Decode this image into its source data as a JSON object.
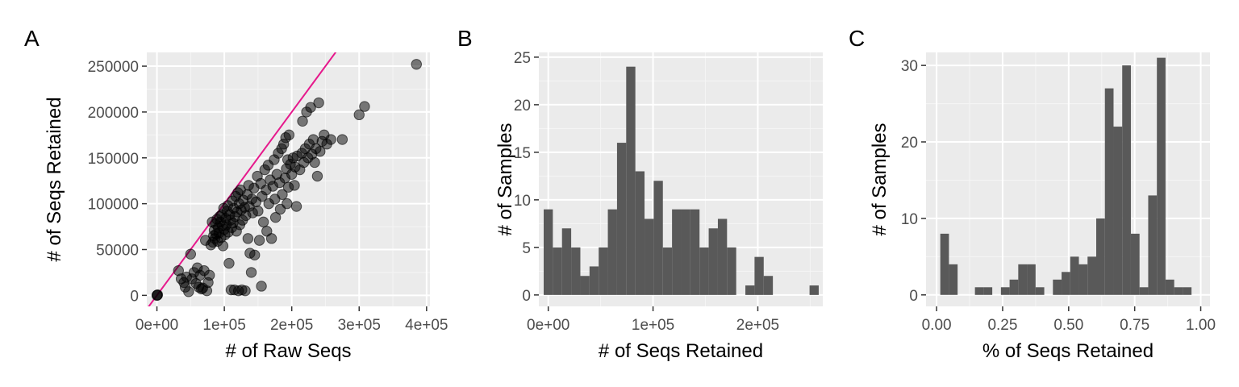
{
  "colors": {
    "panel_background": "#ebebeb",
    "grid_major": "#ffffff",
    "grid_minor": "#f5f5f5",
    "points": "#000000",
    "bars": "#595959",
    "reference_line": "#e6198c",
    "tick_text": "#4d4d4d"
  },
  "chart_data": [
    {
      "panel_tag": "A",
      "type": "scatter",
      "xlabel": "# of Raw Seqs",
      "ylabel": "# of Seqs Retained",
      "xlim": [
        -15000,
        405000
      ],
      "ylim": [
        -12000,
        265000
      ],
      "x_ticks": [
        0,
        100000,
        200000,
        300000,
        400000
      ],
      "x_tick_labels": [
        "0e+00",
        "1e+05",
        "2e+05",
        "3e+05",
        "4e+05"
      ],
      "y_ticks": [
        0,
        50000,
        100000,
        150000,
        200000,
        250000
      ],
      "y_tick_labels": [
        "0",
        "50000",
        "100000",
        "150000",
        "200000",
        "250000"
      ],
      "reference_line": {
        "slope": 1,
        "intercept": 0
      },
      "point_opacity": 0.5,
      "points": [
        [
          0,
          0
        ],
        [
          500,
          300
        ],
        [
          1000,
          600
        ],
        [
          32000,
          27000
        ],
        [
          36000,
          18000
        ],
        [
          40000,
          14000
        ],
        [
          42000,
          9000
        ],
        [
          44000,
          20000
        ],
        [
          47000,
          4000
        ],
        [
          50000,
          45000
        ],
        [
          52000,
          18000
        ],
        [
          55000,
          25000
        ],
        [
          58000,
          13000
        ],
        [
          60000,
          30000
        ],
        [
          62000,
          9000
        ],
        [
          64000,
          22000
        ],
        [
          66000,
          7000
        ],
        [
          68000,
          8000
        ],
        [
          70000,
          27000
        ],
        [
          72000,
          60000
        ],
        [
          74000,
          5000
        ],
        [
          76000,
          14000
        ],
        [
          78000,
          22000
        ],
        [
          80000,
          55000
        ],
        [
          82000,
          80000
        ],
        [
          83000,
          58000
        ],
        [
          84000,
          65000
        ],
        [
          85000,
          71000
        ],
        [
          86000,
          62000
        ],
        [
          87000,
          78000
        ],
        [
          88000,
          67000
        ],
        [
          89000,
          83000
        ],
        [
          90000,
          59000
        ],
        [
          91000,
          74000
        ],
        [
          92000,
          68000
        ],
        [
          93000,
          86000
        ],
        [
          94000,
          80000
        ],
        [
          95000,
          63000
        ],
        [
          96000,
          88000
        ],
        [
          97000,
          76000
        ],
        [
          98000,
          54000
        ],
        [
          99000,
          95000
        ],
        [
          100000,
          72000
        ],
        [
          101000,
          66000
        ],
        [
          102000,
          84000
        ],
        [
          103000,
          77000
        ],
        [
          104000,
          92000
        ],
        [
          105000,
          98000
        ],
        [
          106000,
          69000
        ],
        [
          107000,
          35000
        ],
        [
          108000,
          88000
        ],
        [
          109000,
          82000
        ],
        [
          110000,
          6000
        ],
        [
          111000,
          74000
        ],
        [
          112000,
          103000
        ],
        [
          113000,
          79000
        ],
        [
          114000,
          95000
        ],
        [
          115000,
          6000
        ],
        [
          116000,
          86000
        ],
        [
          117000,
          108000
        ],
        [
          118000,
          70000
        ],
        [
          119000,
          91000
        ],
        [
          120000,
          112000
        ],
        [
          121000,
          5000
        ],
        [
          122000,
          100000
        ],
        [
          123000,
          77000
        ],
        [
          124000,
          115000
        ],
        [
          125000,
          93000
        ],
        [
          126000,
          6000
        ],
        [
          127000,
          82000
        ],
        [
          128000,
          104000
        ],
        [
          130000,
          96000
        ],
        [
          131000,
          5000
        ],
        [
          132000,
          87000
        ],
        [
          134000,
          110000
        ],
        [
          135000,
          62000
        ],
        [
          136000,
          120000
        ],
        [
          137000,
          97000
        ],
        [
          138000,
          46000
        ],
        [
          140000,
          25000
        ],
        [
          141000,
          105000
        ],
        [
          142000,
          90000
        ],
        [
          144000,
          117000
        ],
        [
          145000,
          44000
        ],
        [
          147000,
          102000
        ],
        [
          149000,
          130000
        ],
        [
          150000,
          92000
        ],
        [
          152000,
          60000
        ],
        [
          154000,
          122000
        ],
        [
          155000,
          10000
        ],
        [
          156000,
          108000
        ],
        [
          158000,
          80000
        ],
        [
          160000,
          137000
        ],
        [
          162000,
          115000
        ],
        [
          163000,
          70000
        ],
        [
          165000,
          142000
        ],
        [
          166000,
          100000
        ],
        [
          168000,
          126000
        ],
        [
          170000,
          62000
        ],
        [
          172000,
          119000
        ],
        [
          174000,
          148000
        ],
        [
          175000,
          105000
        ],
        [
          176000,
          85000
        ],
        [
          178000,
          132000
        ],
        [
          180000,
          155000
        ],
        [
          182000,
          123000
        ],
        [
          183000,
          94000
        ],
        [
          185000,
          160000
        ],
        [
          186000,
          110000
        ],
        [
          188000,
          165000
        ],
        [
          190000,
          128000
        ],
        [
          191000,
          172000
        ],
        [
          192000,
          138000
        ],
        [
          193000,
          100000
        ],
        [
          194000,
          148000
        ],
        [
          195000,
          118000
        ],
        [
          196000,
          175000
        ],
        [
          198000,
          143000
        ],
        [
          200000,
          132000
        ],
        [
          202000,
          150000
        ],
        [
          204000,
          120000
        ],
        [
          205000,
          140000
        ],
        [
          207000,
          97000
        ],
        [
          208000,
          152000
        ],
        [
          212000,
          137000
        ],
        [
          215000,
          155000
        ],
        [
          216000,
          190000
        ],
        [
          218000,
          145000
        ],
        [
          220000,
          160000
        ],
        [
          222000,
          200000
        ],
        [
          224000,
          150000
        ],
        [
          226000,
          165000
        ],
        [
          228000,
          205000
        ],
        [
          230000,
          154000
        ],
        [
          232000,
          170000
        ],
        [
          234000,
          145000
        ],
        [
          236000,
          160000
        ],
        [
          238000,
          130000
        ],
        [
          240000,
          210000
        ],
        [
          242000,
          157000
        ],
        [
          245000,
          168000
        ],
        [
          248000,
          175000
        ],
        [
          252000,
          165000
        ],
        [
          258000,
          170000
        ],
        [
          275000,
          170000
        ],
        [
          300000,
          197000
        ],
        [
          308000,
          206000
        ],
        [
          385000,
          252000
        ]
      ]
    },
    {
      "panel_tag": "B",
      "type": "bar",
      "subtype": "histogram",
      "xlabel": "# of Seqs Retained",
      "ylabel": "# of Samples",
      "xlim": [
        -9000,
        262000
      ],
      "ylim": [
        -1.2,
        25.5
      ],
      "x_ticks": [
        0,
        100000,
        200000
      ],
      "x_tick_labels": [
        "0e+00",
        "1e+05",
        "2e+05"
      ],
      "y_ticks": [
        0,
        5,
        10,
        15,
        20,
        25
      ],
      "y_tick_labels": [
        "0",
        "5",
        "10",
        "15",
        "20",
        "25"
      ],
      "bin_start": -4375,
      "bin_width": 8750,
      "counts": [
        9,
        5,
        7,
        5,
        2,
        3,
        5,
        9,
        16,
        24,
        13,
        8,
        12,
        5,
        9,
        9,
        9,
        5,
        7,
        8,
        5,
        0,
        1,
        4,
        2,
        0,
        0,
        0,
        0,
        1
      ]
    },
    {
      "panel_tag": "C",
      "type": "bar",
      "subtype": "histogram",
      "xlabel": "% of Seqs Retained",
      "ylabel": "# of Samples",
      "xlim": [
        -0.04,
        1.035
      ],
      "ylim": [
        -1.5,
        31.7
      ],
      "x_ticks": [
        0,
        0.25,
        0.5,
        0.75,
        1
      ],
      "x_tick_labels": [
        "0.00",
        "0.25",
        "0.50",
        "0.75",
        "1.00"
      ],
      "y_ticks": [
        0,
        10,
        20,
        30
      ],
      "y_tick_labels": [
        "0",
        "10",
        "20",
        "30"
      ],
      "bin_start": 0.014,
      "bin_width": 0.0328,
      "counts": [
        8,
        4,
        0,
        0,
        1,
        1,
        0,
        1,
        2,
        4,
        4,
        1,
        0,
        2,
        3,
        5,
        4,
        5,
        10,
        27,
        22,
        30,
        8,
        1,
        13,
        31,
        2,
        1,
        1
      ]
    }
  ]
}
